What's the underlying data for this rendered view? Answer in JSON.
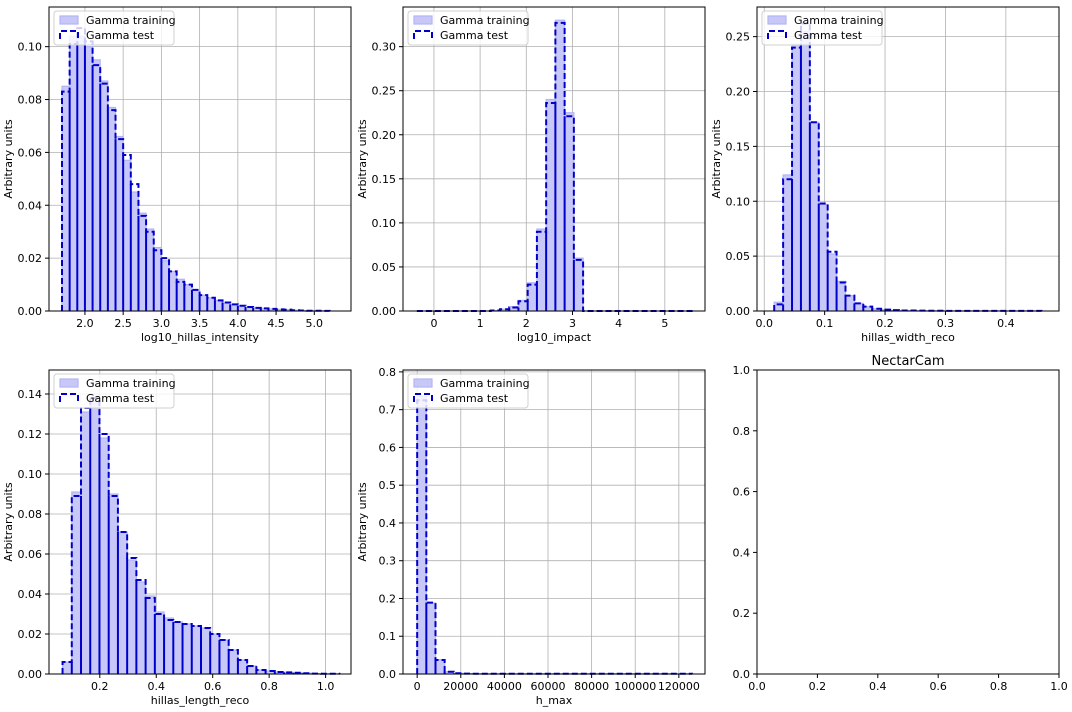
{
  "figure_title": "NectarCam",
  "legend": {
    "training": "Gamma training",
    "test": "Gamma test",
    "training_color": "#0000ff",
    "test_color": "#0000cc"
  },
  "chart_data": [
    {
      "type": "bar",
      "xlabel": "log10_hillas_intensity",
      "ylabel": "Arbitrary units",
      "xlim": [
        1.53,
        5.48
      ],
      "ylim": [
        0,
        0.115
      ],
      "xticks": [
        2.0,
        2.5,
        3.0,
        3.5,
        4.0,
        4.5,
        5.0
      ],
      "xtick_labels": [
        "2.0",
        "2.5",
        "3.0",
        "3.5",
        "4.0",
        "4.5",
        "5.0"
      ],
      "yticks": [
        0,
        0.02,
        0.04,
        0.06,
        0.08,
        0.1
      ],
      "ytick_labels": [
        "0.00",
        "0.02",
        "0.04",
        "0.06",
        "0.08",
        "0.10"
      ],
      "grid": true,
      "legend_position": "top-left",
      "bins": {
        "start": 1.7,
        "width": 0.1
      },
      "train": [
        0.085,
        0.104,
        0.104,
        0.1,
        0.095,
        0.087,
        0.077,
        0.066,
        0.057,
        0.045,
        0.037,
        0.031,
        0.024,
        0.019,
        0.015,
        0.012,
        0.01,
        0.008,
        0.006,
        0.005,
        0.004,
        0.003,
        0.0025,
        0.002,
        0.0015,
        0.0012,
        0.001,
        0.0008,
        0.0006,
        0.0005,
        0.0003,
        0.0002,
        0.0001,
        0.0001,
        5e-05
      ],
      "test": [
        0.083,
        0.101,
        0.107,
        0.102,
        0.093,
        0.086,
        0.076,
        0.065,
        0.059,
        0.048,
        0.036,
        0.03,
        0.023,
        0.02,
        0.015,
        0.011,
        0.01,
        0.008,
        0.006,
        0.005,
        0.004,
        0.0032,
        0.0025,
        0.002,
        0.0015,
        0.0012,
        0.001,
        0.0008,
        0.0006,
        0.0005,
        0.0003,
        0.0002,
        0.0001,
        0.0001,
        5e-05
      ]
    },
    {
      "type": "bar",
      "xlabel": "log10_impact",
      "ylabel": "Arbitrary units",
      "xlim": [
        -0.67,
        5.87
      ],
      "ylim": [
        0,
        0.345
      ],
      "xticks": [
        0,
        1,
        2,
        3,
        4,
        5
      ],
      "xtick_labels": [
        "0",
        "1",
        "2",
        "3",
        "4",
        "5"
      ],
      "yticks": [
        0,
        0.05,
        0.1,
        0.15,
        0.2,
        0.25,
        0.3
      ],
      "ytick_labels": [
        "0.00",
        "0.05",
        "0.10",
        "0.15",
        "0.20",
        "0.25",
        "0.30"
      ],
      "grid": true,
      "legend_position": "top-left",
      "bins": {
        "start": -0.37,
        "width": 0.2
      },
      "train": [
        0,
        0,
        0,
        0,
        0,
        0,
        0,
        0,
        0.0005,
        0.002,
        0.005,
        0.012,
        0.032,
        0.093,
        0.24,
        0.33,
        0.225,
        0.06,
        0,
        0,
        0,
        0,
        0,
        0,
        0,
        0,
        0,
        0,
        0,
        0
      ],
      "test": [
        0,
        0,
        0,
        0,
        0,
        0,
        0,
        0,
        0.0005,
        0.002,
        0.004,
        0.011,
        0.03,
        0.09,
        0.236,
        0.327,
        0.221,
        0.058,
        0,
        0,
        0,
        0,
        0,
        0,
        0,
        0,
        0,
        0,
        0,
        0
      ]
    },
    {
      "type": "bar",
      "xlabel": "hillas_width_reco",
      "ylabel": "Arbitrary units",
      "xlim": [
        -0.012,
        0.488
      ],
      "ylim": [
        0,
        0.277
      ],
      "xticks": [
        0,
        0.1,
        0.2,
        0.3,
        0.4
      ],
      "xtick_labels": [
        "0.0",
        "0.1",
        "0.2",
        "0.3",
        "0.4"
      ],
      "yticks": [
        0,
        0.05,
        0.1,
        0.15,
        0.2,
        0.25
      ],
      "ytick_labels": [
        "0.00",
        "0.05",
        "0.10",
        "0.15",
        "0.20",
        "0.25"
      ],
      "grid": true,
      "legend_position": "top-left",
      "bins": {
        "start": 0.0165,
        "width": 0.01475
      },
      "train": [
        0.008,
        0.124,
        0.243,
        0.255,
        0.172,
        0.097,
        0.052,
        0.027,
        0.014,
        0.007,
        0.004,
        0.002,
        0.0012,
        0.0008,
        0.0005,
        0.0004,
        0.0003,
        0.0002,
        0.0002,
        0.0001,
        0.0001,
        0.0001,
        0.0001,
        0.0001,
        0.0001,
        0.0001,
        0.0001,
        0.0001,
        0.0001,
        0.0001
      ],
      "test": [
        0.006,
        0.12,
        0.24,
        0.262,
        0.172,
        0.098,
        0.054,
        0.026,
        0.014,
        0.007,
        0.004,
        0.002,
        0.0012,
        0.0008,
        0.0005,
        0.0004,
        0.0003,
        0.0002,
        0.0002,
        0.0001,
        0.0001,
        0.0001,
        0.0001,
        0.0001,
        0.0001,
        0.0001,
        0.0001,
        0.0001,
        0.0001,
        0.0001
      ]
    },
    {
      "type": "bar",
      "xlabel": "hillas_length_reco",
      "ylabel": "Arbitrary units",
      "xlim": [
        0.02,
        1.09
      ],
      "ylim": [
        0,
        0.152
      ],
      "xticks": [
        0.2,
        0.4,
        0.6,
        0.8,
        1.0
      ],
      "xtick_labels": [
        "0.2",
        "0.4",
        "0.6",
        "0.8",
        "1.0"
      ],
      "yticks": [
        0,
        0.02,
        0.04,
        0.06,
        0.08,
        0.1,
        0.12,
        0.14
      ],
      "ytick_labels": [
        "0.00",
        "0.02",
        "0.04",
        "0.06",
        "0.08",
        "0.10",
        "0.12",
        "0.14"
      ],
      "grid": true,
      "legend_position": "top-left",
      "bins": {
        "start": 0.068,
        "width": 0.0327
      },
      "train": [
        0.006,
        0.091,
        0.131,
        0.136,
        0.118,
        0.09,
        0.071,
        0.057,
        0.046,
        0.039,
        0.031,
        0.028,
        0.026,
        0.025,
        0.024,
        0.023,
        0.02,
        0.017,
        0.012,
        0.007,
        0.004,
        0.002,
        0.0015,
        0.001,
        0.0008,
        0.0006,
        0.0004,
        0.0002,
        0.0001,
        0.0001
      ],
      "test": [
        0.006,
        0.089,
        0.133,
        0.138,
        0.12,
        0.089,
        0.071,
        0.058,
        0.047,
        0.038,
        0.03,
        0.027,
        0.026,
        0.025,
        0.024,
        0.023,
        0.02,
        0.017,
        0.012,
        0.007,
        0.004,
        0.002,
        0.0015,
        0.001,
        0.0008,
        0.0006,
        0.0004,
        0.0002,
        0.0001,
        0.0001
      ]
    },
    {
      "type": "bar",
      "xlabel": "h_max",
      "ylabel": "Arbitrary units",
      "xlim": [
        -6500,
        132000
      ],
      "ylim": [
        0,
        0.805
      ],
      "xticks": [
        0,
        20000,
        40000,
        60000,
        80000,
        100000,
        120000
      ],
      "xtick_labels": [
        "0",
        "20000",
        "40000",
        "60000",
        "80000",
        "100000",
        "120000"
      ],
      "yticks": [
        0,
        0.1,
        0.2,
        0.3,
        0.4,
        0.5,
        0.6,
        0.7,
        0.8
      ],
      "ytick_labels": [
        "0.0",
        "0.1",
        "0.2",
        "0.3",
        "0.4",
        "0.5",
        "0.6",
        "0.7",
        "0.8"
      ],
      "grid": true,
      "legend_position": "top-left",
      "bins": {
        "start": 0,
        "width": 4200
      },
      "train": [
        0.735,
        0.188,
        0.038,
        0.006,
        0.002,
        0.001,
        0.0005,
        0.0005,
        0.0005,
        0.0005,
        0.0005,
        0.0005,
        0.0005,
        0.0005,
        0.0005,
        0.0005,
        0.0005,
        0.0005,
        0.0005,
        0.0005,
        0.0005,
        0.0005,
        0.0005,
        0.0005,
        0.0005,
        0.0005,
        0.0005,
        0.0005,
        0.0005,
        0.0005
      ],
      "test": [
        0.725,
        0.189,
        0.037,
        0.006,
        0.002,
        0.001,
        0.0005,
        0.0005,
        0.0005,
        0.0005,
        0.0005,
        0.0005,
        0.0005,
        0.0005,
        0.0005,
        0.0005,
        0.0005,
        0.0005,
        0.0005,
        0.0005,
        0.0005,
        0.0005,
        0.0005,
        0.0005,
        0.0005,
        0.0005,
        0.0005,
        0.0005,
        0.0005,
        0.0005
      ]
    },
    {
      "type": "bar",
      "title": "NectarCam",
      "xlabel": "",
      "ylabel": "",
      "xlim": [
        0,
        1
      ],
      "ylim": [
        0,
        1
      ],
      "xticks": [
        0,
        0.2,
        0.4,
        0.6,
        0.8,
        1.0
      ],
      "xtick_labels": [
        "0.0",
        "0.2",
        "0.4",
        "0.6",
        "0.8",
        "1.0"
      ],
      "yticks": [
        0,
        0.2,
        0.4,
        0.6,
        0.8,
        1.0
      ],
      "ytick_labels": [
        "0.0",
        "0.2",
        "0.4",
        "0.6",
        "0.8",
        "1.0"
      ],
      "grid": false,
      "empty": true
    }
  ]
}
